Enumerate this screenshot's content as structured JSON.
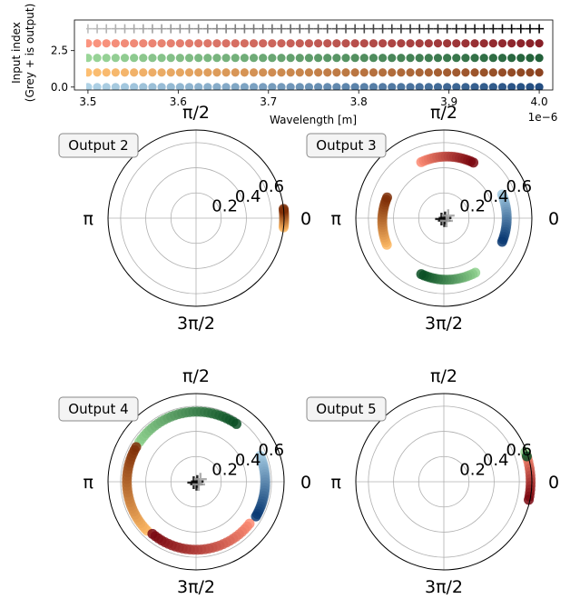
{
  "chart_data": [
    {
      "type": "scatter",
      "title": "",
      "xlabel": "Wavelength [m]",
      "ylabel_lines": [
        "Input index",
        "(Grey + is output)"
      ],
      "x_offset_label": "1e−6",
      "xlim": [
        3.485,
        4.015
      ],
      "ylim": [
        -0.2,
        4.6
      ],
      "x_ticks": [
        3.5,
        3.6,
        3.7,
        3.8,
        3.9,
        4.0
      ],
      "x_tick_labels": [
        "3.5",
        "3.6",
        "3.7",
        "3.8",
        "3.9",
        "4.0"
      ],
      "y_ticks": [
        0,
        2.5
      ],
      "y_tick_labels": [
        "0.0",
        "2.5"
      ],
      "x_range": [
        3.5,
        4.0
      ],
      "n_points": 50,
      "series": [
        {
          "y": 0,
          "color_start": "#a6cde3",
          "color_end": "#0b3a73"
        },
        {
          "y": 1,
          "color_start": "#fdb863",
          "color_end": "#7f2f08"
        },
        {
          "y": 2,
          "color_start": "#8fd18e",
          "color_end": "#0a4f24"
        },
        {
          "y": 3,
          "color_start": "#fb8a72",
          "color_end": "#7a0710"
        },
        {
          "y": 4,
          "marker": "+",
          "color_start": "#bdbdbd",
          "color_end": "#000000"
        }
      ]
    },
    {
      "type": "polar-scatter",
      "legend": "Output 2",
      "r_ticks": [
        0.2,
        0.4,
        0.6
      ],
      "r_tick_labels": [
        "0.2",
        "0.4",
        "0.6"
      ],
      "r_max": 0.7,
      "angle_labels": [
        "0",
        "π/2",
        "π",
        "3π/2"
      ],
      "series": [
        {
          "color_start": "#fdb863",
          "color_end": "#7f2f08",
          "theta_start_deg": -6,
          "theta_end_deg": 6,
          "r_start": 0.7,
          "r_end": 0.7,
          "n": 12
        }
      ]
    },
    {
      "type": "polar-scatter",
      "legend": "Output 3",
      "r_ticks": [
        0.2,
        0.4,
        0.6
      ],
      "r_tick_labels": [
        "0.2",
        "0.4",
        "0.6"
      ],
      "r_max": 0.7,
      "angle_labels": [
        "0",
        "π/2",
        "π",
        "3π/2"
      ],
      "series": [
        {
          "color_start": "#a6cde3",
          "color_end": "#0b3a73",
          "theta_start_deg": 22,
          "theta_end_deg": -22,
          "r_start": 0.5,
          "r_end": 0.5,
          "n": 20
        },
        {
          "color_start": "#8fd18e",
          "color_end": "#0a4f24",
          "theta_start_deg": -60,
          "theta_end_deg": -112,
          "r_start": 0.5,
          "r_end": 0.48,
          "n": 20
        },
        {
          "color_start": "#fdb863",
          "color_end": "#7f2f08",
          "theta_start_deg": 205,
          "theta_end_deg": 160,
          "r_start": 0.5,
          "r_end": 0.48,
          "n": 20
        },
        {
          "color_start": "#fb8a72",
          "color_end": "#7a0710",
          "theta_start_deg": 112,
          "theta_end_deg": 62,
          "r_start": 0.48,
          "r_end": 0.5,
          "n": 20
        }
      ],
      "outputs": {
        "marker": "+",
        "theta_deg": [
          10,
          200,
          280,
          30,
          315
        ],
        "r": [
          0.01,
          0.02,
          0.02,
          0.04,
          0.03
        ]
      }
    },
    {
      "type": "polar-scatter",
      "legend": "Output 4",
      "r_ticks": [
        0.2,
        0.4,
        0.6
      ],
      "r_tick_labels": [
        "0.2",
        "0.4",
        "0.6"
      ],
      "r_max": 0.7,
      "angle_labels": [
        "0",
        "π/2",
        "π",
        "3π/2"
      ],
      "series": [
        {
          "color_start": "#a6cde3",
          "color_end": "#0b3a73",
          "theta_start_deg": 22,
          "theta_end_deg": -30,
          "r_start": 0.55,
          "r_end": 0.55,
          "n": 24
        },
        {
          "color_start": "#8fd18e",
          "color_end": "#0a4f24",
          "theta_start_deg": 145,
          "theta_end_deg": 55,
          "r_start": 0.55,
          "r_end": 0.56,
          "n": 30
        },
        {
          "color_start": "#fdb863",
          "color_end": "#7f2f08",
          "theta_start_deg": 225,
          "theta_end_deg": 150,
          "r_start": 0.55,
          "r_end": 0.55,
          "n": 28
        },
        {
          "color_start": "#fb8a72",
          "color_end": "#7a0710",
          "theta_start_deg": -38,
          "theta_end_deg": -130,
          "r_start": 0.54,
          "r_end": 0.54,
          "n": 30
        }
      ],
      "outputs": {
        "marker": "+",
        "theta_deg": [
          10,
          200,
          280,
          30,
          315
        ],
        "r": [
          0.01,
          0.02,
          0.02,
          0.04,
          0.03
        ]
      }
    },
    {
      "type": "polar-scatter",
      "legend": "Output 5",
      "r_ticks": [
        0.2,
        0.4,
        0.6
      ],
      "r_tick_labels": [
        "0.2",
        "0.4",
        "0.6"
      ],
      "r_max": 0.7,
      "angle_labels": [
        "0",
        "π/2",
        "π",
        "3π/2"
      ],
      "series": [
        {
          "color_start": "#fb8a72",
          "color_end": "#7a0710",
          "theta_start_deg": 18,
          "theta_end_deg": -12,
          "r_start": 0.69,
          "r_end": 0.69,
          "n": 14
        },
        {
          "color_start": "#8fd18e",
          "color_end": "#0a4f24",
          "theta_start_deg": 20,
          "theta_end_deg": 17,
          "r_start": 0.69,
          "r_end": 0.69,
          "n": 2
        }
      ]
    }
  ]
}
